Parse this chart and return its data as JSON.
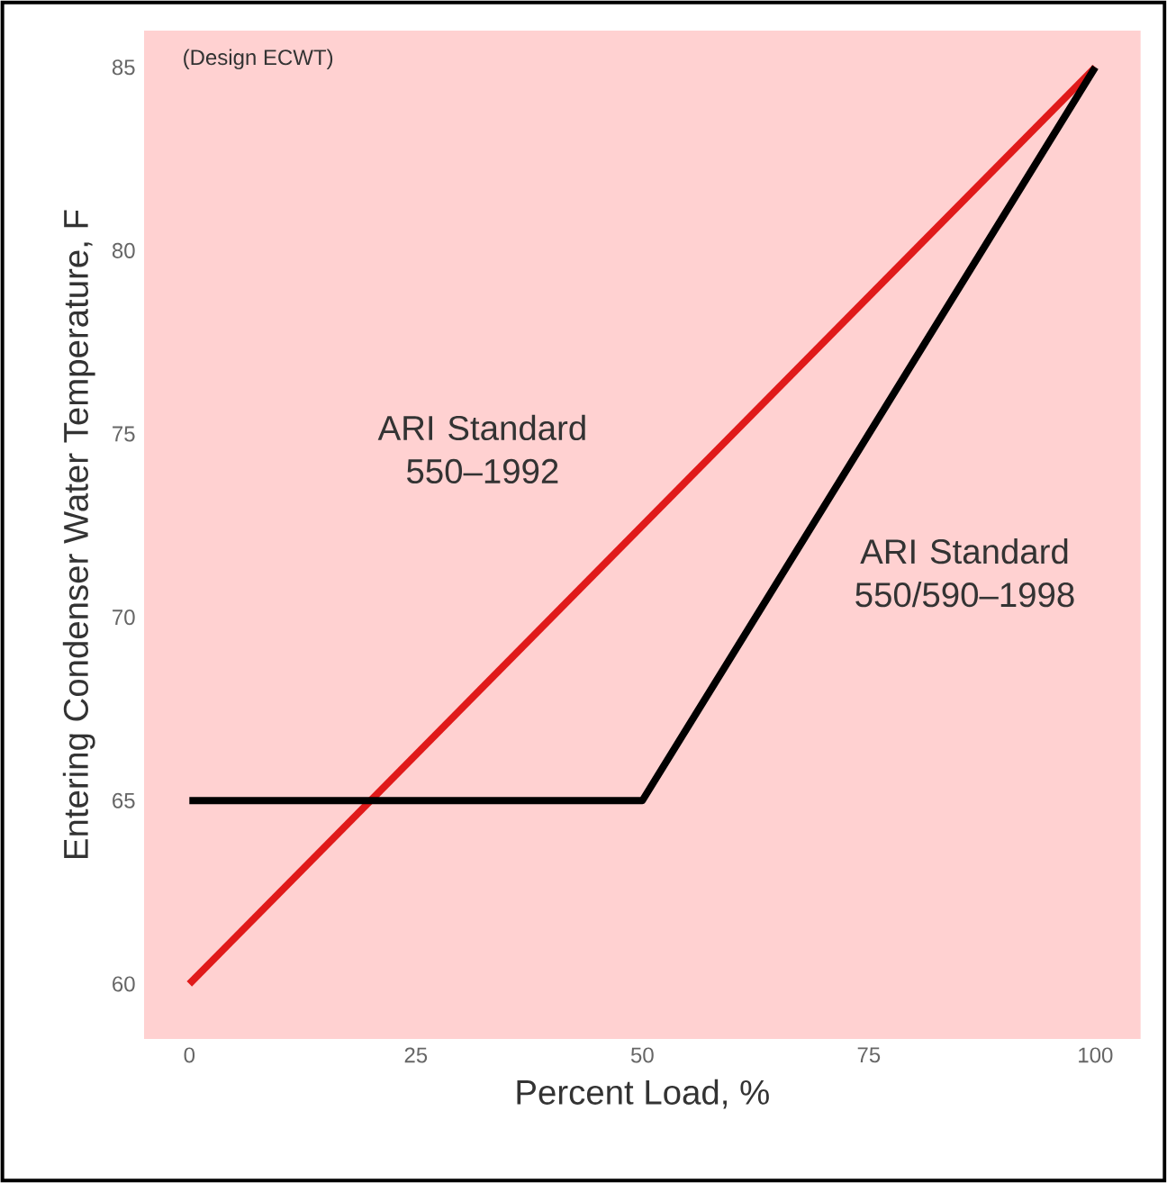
{
  "chart_data": {
    "type": "line",
    "xlabel": "Percent Load, %",
    "ylabel": "Entering Condenser Water Temperature, F",
    "annotations": [
      "(Design ECWT)"
    ],
    "series": [
      {
        "name": "ARI Standard 550–1992",
        "color": "#e01a1a",
        "x": [
          0,
          100
        ],
        "values": [
          60,
          85
        ]
      },
      {
        "name": "ARI Standard 550/590–1998",
        "color": "#000000",
        "x": [
          0,
          50,
          100
        ],
        "values": [
          65,
          65,
          85
        ]
      }
    ],
    "xlim": [
      -5,
      105
    ],
    "ylim": [
      58.5,
      86
    ],
    "xticks": [
      0,
      25,
      50,
      75,
      100
    ],
    "yticks": [
      60,
      65,
      70,
      75,
      80,
      85
    ],
    "grid": false,
    "marker": "none",
    "line_style": "solid"
  }
}
